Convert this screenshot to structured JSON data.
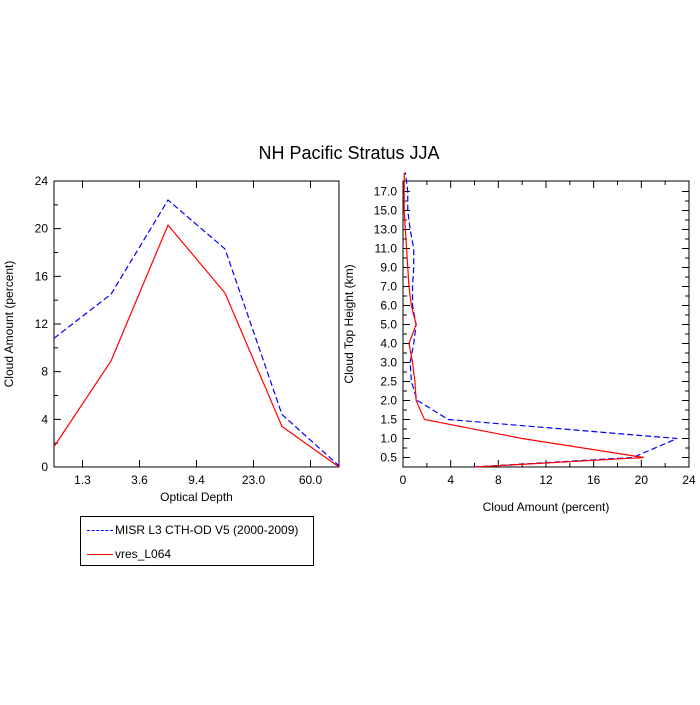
{
  "title": "NH Pacific Stratus JJA",
  "colors": {
    "obs": "#0000ff",
    "model": "#ff0000",
    "axis": "#000000"
  },
  "legend": {
    "items": [
      {
        "label": "MISR L3 CTH-OD V5 (2000-2009)",
        "color": "#0000ff",
        "dash": "dashed"
      },
      {
        "label": "vres_L064",
        "color": "#ff0000",
        "dash": "solid"
      }
    ]
  },
  "chart_data": [
    {
      "type": "line",
      "xlabel": "Optical Depth",
      "ylabel": "Cloud Amount (percent)",
      "x_tick_labels": [
        "1.3",
        "3.6",
        "9.4",
        "23.0",
        "60.0"
      ],
      "x_index": [
        0,
        1,
        2,
        3,
        4,
        5
      ],
      "ylim": [
        0,
        24
      ],
      "y_ticks": [
        "0",
        "4",
        "8",
        "12",
        "16",
        "20",
        "24"
      ],
      "series": [
        {
          "name": "MISR L3 CTH-OD V5 (2000-2009)",
          "values": [
            10.8,
            14.5,
            22.4,
            18.3,
            4.4,
            0.1
          ]
        },
        {
          "name": "vres_L064",
          "values": [
            1.7,
            8.9,
            20.3,
            14.6,
            3.4,
            0.0
          ]
        }
      ]
    },
    {
      "type": "line",
      "xlabel": "Cloud Amount (percent)",
      "ylabel": "Cloud Top Height (km)",
      "xlim": [
        0,
        24
      ],
      "x_ticks": [
        "0",
        "4",
        "8",
        "12",
        "16",
        "20",
        "24"
      ],
      "y_tick_labels": [
        "0.5",
        "1.0",
        "1.5",
        "2.0",
        "2.5",
        "3.0",
        "4.0",
        "5.0",
        "6.0",
        "7.0",
        "9.0",
        "11.0",
        "13.0",
        "15.0",
        "17.0"
      ],
      "y_index": [
        -0.5,
        0,
        1,
        2,
        3,
        4,
        5,
        6,
        7,
        8,
        9,
        10,
        11,
        12,
        13,
        14,
        15
      ],
      "series": [
        {
          "name": "MISR L3 CTH-OD V5 (2000-2009)",
          "values": [
            5.9,
            19.3,
            23.0,
            3.8,
            1.2,
            0.7,
            0.6,
            0.9,
            1.1,
            0.8,
            0.8,
            0.9,
            0.9,
            0.6,
            0.4,
            0.4,
            0.2
          ]
        },
        {
          "name": "vres_L064",
          "values": [
            6.0,
            20.2,
            10.0,
            1.8,
            1.1,
            1.0,
            0.8,
            0.5,
            1.1,
            0.7,
            0.5,
            0.4,
            0.3,
            0.2,
            0.1,
            0.1,
            0.1
          ]
        }
      ]
    }
  ]
}
